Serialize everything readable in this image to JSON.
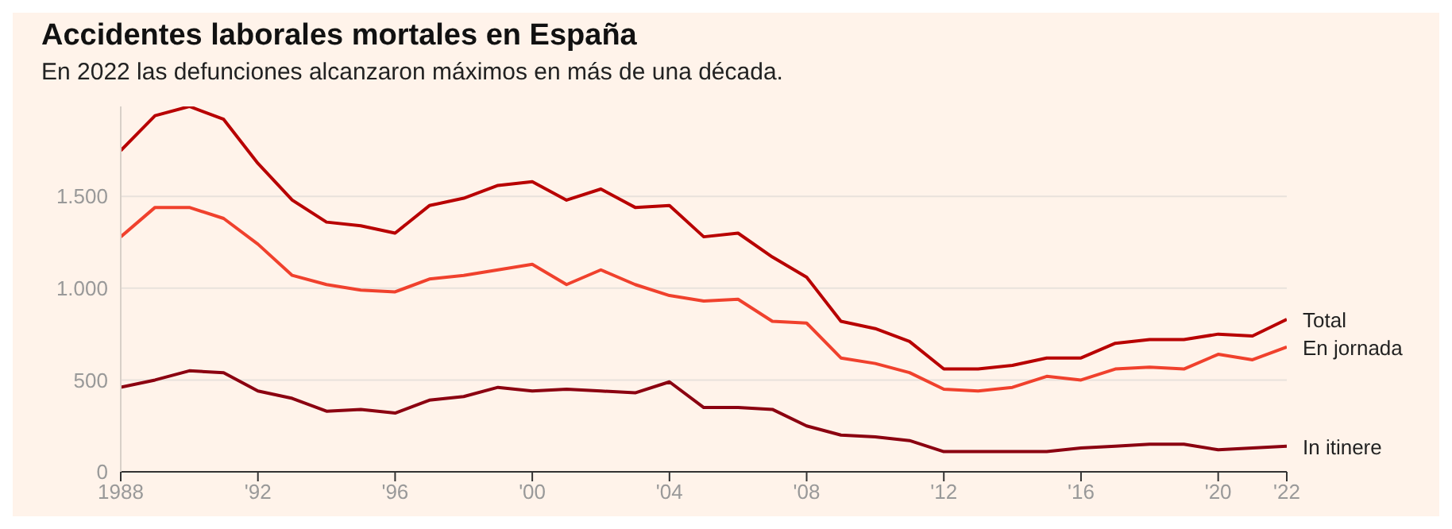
{
  "chart_data": {
    "type": "line",
    "title": "Accidentes laborales mortales en España",
    "subtitle": "En 2022 las defunciones alcanzaron máximos en más de una década.",
    "x": [
      1988,
      1989,
      1990,
      1991,
      1992,
      1993,
      1994,
      1995,
      1996,
      1997,
      1998,
      1999,
      2000,
      2001,
      2002,
      2003,
      2004,
      2005,
      2006,
      2007,
      2008,
      2009,
      2010,
      2011,
      2012,
      2013,
      2014,
      2015,
      2016,
      2017,
      2018,
      2019,
      2020,
      2021,
      2022
    ],
    "series": [
      {
        "name": "Total",
        "color": "#b80000",
        "values": [
          1750,
          1940,
          1990,
          1920,
          1680,
          1480,
          1360,
          1340,
          1300,
          1450,
          1490,
          1560,
          1580,
          1480,
          1540,
          1440,
          1450,
          1280,
          1300,
          1170,
          1060,
          820,
          780,
          710,
          560,
          560,
          580,
          620,
          620,
          700,
          720,
          720,
          750,
          740,
          830
        ]
      },
      {
        "name": "En jornada",
        "color": "#f0412d",
        "values": [
          1280,
          1440,
          1440,
          1380,
          1240,
          1070,
          1020,
          990,
          980,
          1050,
          1070,
          1100,
          1130,
          1020,
          1100,
          1020,
          960,
          930,
          940,
          820,
          810,
          620,
          590,
          540,
          450,
          440,
          460,
          520,
          500,
          560,
          570,
          560,
          640,
          610,
          680
        ]
      },
      {
        "name": "In itinere",
        "color": "#8b0010",
        "values": [
          460,
          500,
          550,
          540,
          440,
          400,
          330,
          340,
          320,
          390,
          410,
          460,
          440,
          450,
          440,
          430,
          490,
          350,
          350,
          340,
          250,
          200,
          190,
          170,
          110,
          110,
          110,
          110,
          130,
          140,
          150,
          150,
          120,
          130,
          140
        ]
      }
    ],
    "xlim": [
      1988,
      2022
    ],
    "ylim": [
      0,
      1990
    ],
    "xticks": [
      1988,
      {
        "value": 1992,
        "label": "'92"
      },
      {
        "value": 1996,
        "label": "'96"
      },
      {
        "value": 2000,
        "label": "'00"
      },
      {
        "value": 2004,
        "label": "'04"
      },
      {
        "value": 2008,
        "label": "'08"
      },
      {
        "value": 2012,
        "label": "'12"
      },
      {
        "value": 2016,
        "label": "'16"
      },
      {
        "value": 2020,
        "label": "'20"
      },
      {
        "value": 2022,
        "label": "'22"
      }
    ],
    "yticks": [
      0,
      {
        "value": 500,
        "label": "500"
      },
      {
        "value": 1000,
        "label": "1.000"
      },
      {
        "value": 1500,
        "label": "1.500"
      }
    ],
    "grid": "y",
    "legend": false,
    "marker": "none",
    "line_style": "solid"
  }
}
